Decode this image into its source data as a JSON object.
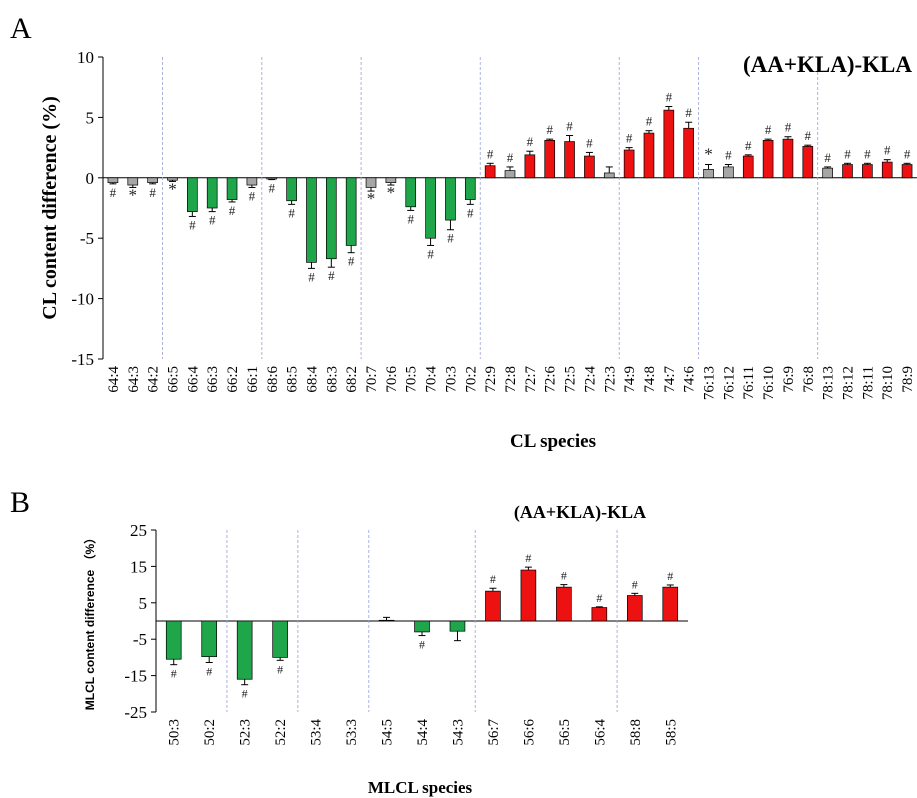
{
  "panels": {
    "a": {
      "letter": "A"
    },
    "b": {
      "letter": "B"
    }
  },
  "colors": {
    "decrease": "#1fa64a",
    "increase": "#ee1111",
    "nonsignificant": "#a6a6a6",
    "divider": "#9aa0d8"
  },
  "chart_data": [
    {
      "type": "bar",
      "title": "(AA+KLA)-KLA",
      "xlabel": "CL species",
      "ylabel": "CL content difference (%)",
      "ylim": [
        -15,
        10
      ],
      "yticks": [
        10,
        5,
        0,
        -5,
        -10,
        -15
      ],
      "grid": false,
      "categories": [
        "64:4",
        "64:3",
        "64:2",
        "66:5",
        "66:4",
        "66:3",
        "66:2",
        "66:1",
        "68:6",
        "68:5",
        "68:4",
        "68:3",
        "68:2",
        "70:7",
        "70:6",
        "70:5",
        "70:4",
        "70:3",
        "70:2",
        "72:9",
        "72:8",
        "72:7",
        "72:6",
        "72:5",
        "72:4",
        "72:3",
        "74:9",
        "74:8",
        "74:7",
        "74:6",
        "76:13",
        "76:12",
        "76:11",
        "76:10",
        "76:9",
        "76:8",
        "78:13",
        "78:12",
        "78:11",
        "78:10",
        "78:9"
      ],
      "values": [
        -0.4,
        -0.6,
        -0.4,
        -0.2,
        -2.8,
        -2.5,
        -1.8,
        -0.6,
        -0.1,
        -1.9,
        -7.0,
        -6.7,
        -5.6,
        -0.8,
        -0.4,
        -2.4,
        -5.0,
        -3.5,
        -1.8,
        1.0,
        0.6,
        1.9,
        3.1,
        3.0,
        1.8,
        0.4,
        2.3,
        3.7,
        5.6,
        4.1,
        0.7,
        0.9,
        1.8,
        3.1,
        3.2,
        2.6,
        0.8,
        1.1,
        1.1,
        1.3,
        1.1
      ],
      "errors": [
        0.1,
        0.2,
        0.1,
        0.1,
        0.4,
        0.3,
        0.2,
        0.2,
        0.05,
        0.3,
        0.5,
        0.7,
        0.6,
        0.3,
        0.2,
        0.3,
        0.6,
        0.8,
        0.4,
        0.2,
        0.3,
        0.3,
        0.1,
        0.5,
        0.3,
        0.5,
        0.2,
        0.2,
        0.3,
        0.5,
        0.4,
        0.2,
        0.1,
        0.1,
        0.2,
        0.1,
        0.1,
        0.1,
        0.1,
        0.2,
        0.1
      ],
      "colors": [
        "nonsignificant",
        "nonsignificant",
        "nonsignificant",
        "nonsignificant",
        "decrease",
        "decrease",
        "decrease",
        "nonsignificant",
        "nonsignificant",
        "decrease",
        "decrease",
        "decrease",
        "decrease",
        "nonsignificant",
        "nonsignificant",
        "decrease",
        "decrease",
        "decrease",
        "decrease",
        "increase",
        "nonsignificant",
        "increase",
        "increase",
        "increase",
        "increase",
        "nonsignificant",
        "increase",
        "increase",
        "increase",
        "increase",
        "nonsignificant",
        "nonsignificant",
        "increase",
        "increase",
        "increase",
        "increase",
        "nonsignificant",
        "increase",
        "increase",
        "increase",
        "increase"
      ],
      "markers": [
        "#",
        "*",
        "#",
        "*",
        "#",
        "#",
        "#",
        "#",
        "#",
        "#",
        "#",
        "#",
        "#",
        "*",
        "*",
        "#",
        "#",
        "#",
        "#",
        "#",
        "#",
        "#",
        "#",
        "#",
        "#",
        "",
        "#",
        "#",
        "#",
        "#",
        "*",
        "#",
        "#",
        "#",
        "#",
        "#",
        "#",
        "#",
        "#",
        "#",
        "#"
      ],
      "group_dividers_after": [
        "64:2",
        "66:1",
        "68:2",
        "70:2",
        "72:3",
        "74:6",
        "76:8"
      ]
    },
    {
      "type": "bar",
      "title": "(AA+KLA)-KLA",
      "xlabel": "MLCL species",
      "ylabel": "MLCL content difference （%）",
      "ylim": [
        -25,
        25
      ],
      "yticks": [
        25,
        15,
        5,
        -5,
        -15,
        -25
      ],
      "grid": false,
      "categories": [
        "50:3",
        "50:2",
        "52:3",
        "52:2",
        "53:4",
        "53:3",
        "54:5",
        "54:4",
        "54:3",
        "56:7",
        "56:6",
        "56:5",
        "56:4",
        "58:8",
        "58:5"
      ],
      "values": [
        -10.5,
        -9.8,
        -16.0,
        -10.0,
        0,
        0,
        0.2,
        -3.0,
        -2.8,
        8.2,
        14.0,
        9.3,
        3.7,
        7.0,
        9.3
      ],
      "errors": [
        1.5,
        1.6,
        1.5,
        0.8,
        0,
        0,
        0.8,
        1.0,
        2.6,
        0.8,
        0.8,
        0.7,
        0.2,
        0.6,
        0.6
      ],
      "colors": [
        "decrease",
        "decrease",
        "decrease",
        "decrease",
        "nonsignificant",
        "nonsignificant",
        "nonsignificant",
        "decrease",
        "decrease",
        "increase",
        "increase",
        "increase",
        "increase",
        "increase",
        "increase"
      ],
      "markers": [
        "#",
        "#",
        "#",
        "#",
        "",
        "",
        "",
        "#",
        "",
        "#",
        "#",
        "#",
        "#",
        "#",
        "#"
      ],
      "group_dividers_after": [
        "50:2",
        "52:2",
        "53:3",
        "54:3",
        "56:4"
      ]
    }
  ]
}
